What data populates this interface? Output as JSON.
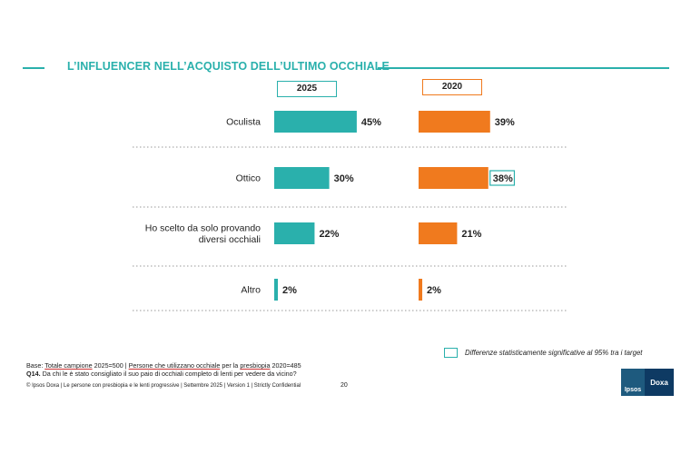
{
  "header": {
    "title": "L’INFLUENCER NELL’ACQUISTO DELL’ULTIMO OCCHIALE"
  },
  "colors": {
    "series_2025": "#2ab0ac",
    "series_2020": "#f07a1e",
    "accent": "#2ab0ac",
    "divider": "#999999"
  },
  "chart_data": {
    "type": "bar",
    "orientation": "horizontal",
    "title": "L’INFLUENCER NELL’ACQUISTO DELL’ULTIMO OCCHIALE",
    "categories": [
      "Oculista",
      "Ottico",
      "Ho scelto da solo provando diversi occhiali",
      "Altro"
    ],
    "category_lines": [
      [
        "Oculista"
      ],
      [
        "Ottico"
      ],
      [
        "Ho scelto da solo provando",
        "diversi occhiali"
      ],
      [
        "Altro"
      ]
    ],
    "series": [
      {
        "name": "2025",
        "values": [
          45,
          30,
          22,
          2
        ],
        "labels": [
          "45%",
          "30%",
          "22%",
          "2%"
        ],
        "color": "#2ab0ac"
      },
      {
        "name": "2020",
        "values": [
          39,
          38,
          21,
          2
        ],
        "labels": [
          "39%",
          "38%",
          "21%",
          "2%"
        ],
        "color": "#f07a1e",
        "significant": [
          false,
          true,
          false,
          false
        ]
      }
    ],
    "unit": "%",
    "xlim": [
      0,
      100
    ]
  },
  "legend": {
    "significance_label": "Differenze statisticamente significative al 95% tra i target"
  },
  "footer": {
    "base_prefix": "Base: ",
    "base_total": "Totale campione",
    "base_total_n": " 2025=500 | ",
    "base_users": "Persone che utilizzano occhiale",
    "base_users_mid": " per la ",
    "base_presbyopia": "presbiopia",
    "base_users_n": " 2020=485",
    "question_code": "Q14.",
    "question_text": " Da chi le è stato consigliato il suo paio di occhiali completo di lenti per vedere da vicino?",
    "copyright": "© Ipsos Doxa | Le persone con presbiopia e le lenti progressive | Settembre 2025 | Version 1 | Strictly Confidential",
    "page_number": "20"
  },
  "logo": {
    "left": "Ipsos",
    "right": "Doxa"
  }
}
